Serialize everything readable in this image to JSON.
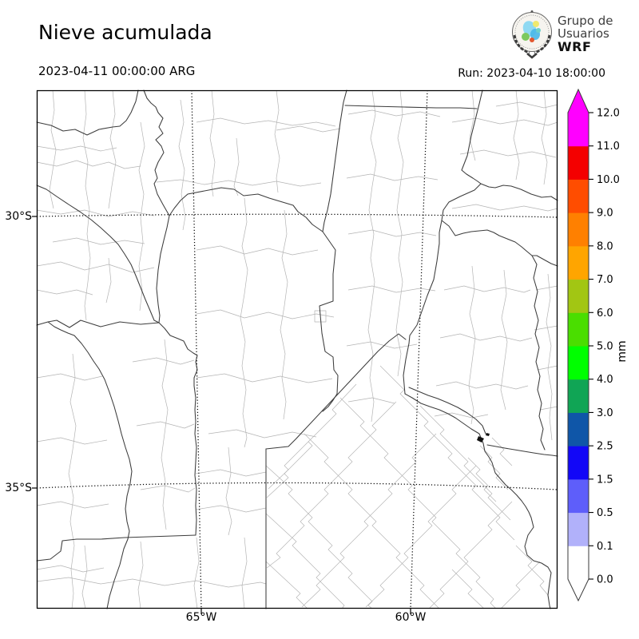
{
  "header": {
    "title": "Nieve acumulada",
    "valid_time": "2023-04-11 00:00:00 ARG",
    "run_label": "Run: 2023-04-10 18:00:00",
    "logo": {
      "line1": "Grupo de",
      "line2": "Usuarios",
      "line3": "WRF"
    }
  },
  "map": {
    "yticks": [
      {
        "label": "30°S"
      },
      {
        "label": "35°S"
      }
    ],
    "xticks": [
      {
        "label": "65°W"
      },
      {
        "label": "60°W"
      }
    ]
  },
  "chart_data": {
    "type": "heatmap",
    "title": "Nieve acumulada",
    "field": "Accumulated snow",
    "valid_time": "2023-04-11 00:00:00 ARG",
    "model_run": "2023-04-10 18:00:00",
    "source": "Grupo de Usuarios WRF",
    "region": "Central Argentina and Río de la Plata (approx. 69°W–56.5°W, 27.5°S–37°S)",
    "x_axis": {
      "ticks": [
        "65°W",
        "60°W"
      ]
    },
    "y_axis": {
      "ticks": [
        "30°S",
        "35°S"
      ]
    },
    "grid": "dotted graticule lines at labeled meridians and parallels",
    "basemap": "province and department boundaries, no fill",
    "colorbar": {
      "unit": "mm",
      "position": "right",
      "levels": [
        0.0,
        0.1,
        0.5,
        1.5,
        2.5,
        3.0,
        4.0,
        5.0,
        6.0,
        7.0,
        8.0,
        9.0,
        10.0,
        11.0,
        12.0
      ],
      "tick_labels": [
        "0.0",
        "0.1",
        "0.5",
        "1.5",
        "2.5",
        "3.0",
        "4.0",
        "5.0",
        "6.0",
        "7.0",
        "8.0",
        "9.0",
        "10.0",
        "11.0",
        "12.0"
      ],
      "segment_colors": [
        "#ffffff",
        "#b1b1fa",
        "#5e5efa",
        "#1207f7",
        "#0f56a8",
        "#10a555",
        "#00ff00",
        "#4ade00",
        "#a2c613",
        "#ffa500",
        "#ff8000",
        "#ff4d00",
        "#f40000",
        "#ff00ff"
      ],
      "over_arrow_color": "#ff00ff",
      "under_arrow_color": "#ffffff"
    },
    "values": "Snow accumulation field is 0 mm over the whole visible domain (no shaded values on the map)"
  }
}
